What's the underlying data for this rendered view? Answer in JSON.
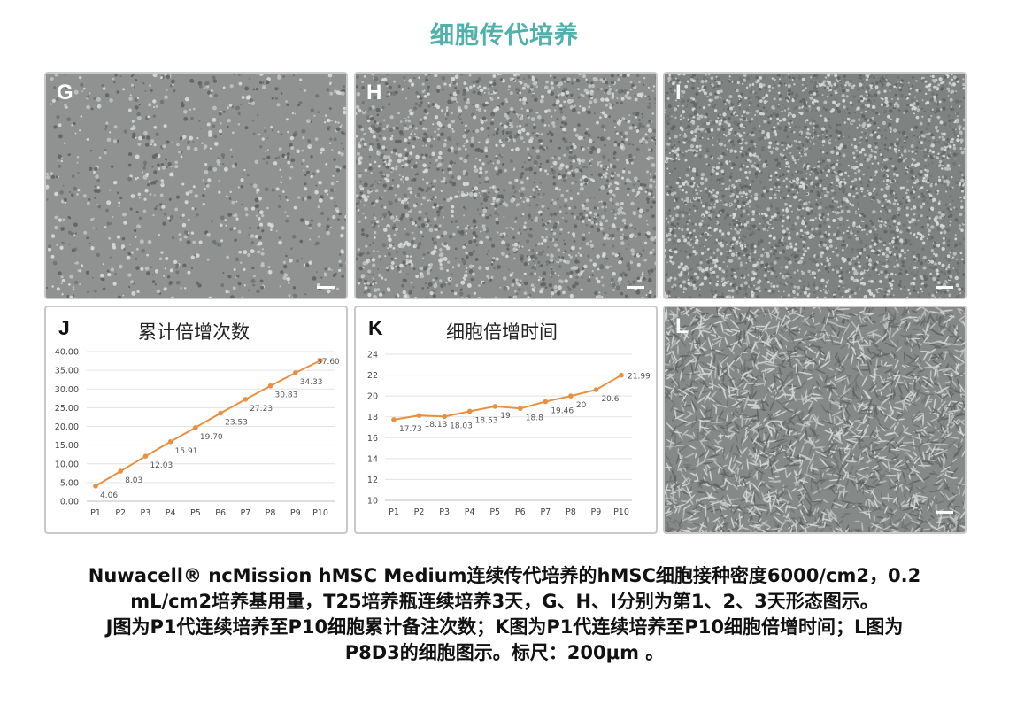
{
  "title": "细胞传代培养",
  "panels": {
    "g": "G",
    "h": "H",
    "i": "I",
    "l": "L"
  },
  "chart_data": [
    {
      "type": "line",
      "panel_label": "J",
      "title": "累计倍增次数",
      "categories": [
        "P1",
        "P2",
        "P3",
        "P4",
        "P5",
        "P6",
        "P7",
        "P8",
        "P9",
        "P10"
      ],
      "values": [
        4.06,
        8.03,
        12.03,
        15.91,
        19.7,
        23.53,
        27.23,
        30.83,
        34.33,
        37.6
      ],
      "data_labels": [
        "4.06",
        "8.03",
        "12.03",
        "15.91",
        "19.70",
        "23.53",
        "27.23",
        "30.83",
        "34.33",
        "37.60"
      ],
      "yticks": [
        "0.00",
        "5.00",
        "10.00",
        "15.00",
        "20.00",
        "25.00",
        "30.00",
        "35.00",
        "40.00"
      ],
      "ylim": [
        0,
        40
      ],
      "grid": true,
      "color": "#e98f3f"
    },
    {
      "type": "line",
      "panel_label": "K",
      "title": "细胞倍增时间",
      "categories": [
        "P1",
        "P2",
        "P3",
        "P4",
        "P5",
        "P6",
        "P7",
        "P8",
        "P9",
        "P10"
      ],
      "values": [
        17.73,
        18.13,
        18.03,
        18.53,
        19,
        18.8,
        19.46,
        20,
        20.6,
        21.99
      ],
      "data_labels": [
        "17.73",
        "18.13",
        "18.03",
        "18.53",
        "19",
        "18.8",
        "19.46",
        "20",
        "20.6",
        "21.99"
      ],
      "yticks": [
        "10",
        "12",
        "14",
        "16",
        "18",
        "20",
        "22",
        "24"
      ],
      "ylim": [
        10,
        24
      ],
      "grid": true,
      "color": "#e98f3f"
    }
  ],
  "caption": {
    "line1": "Nuwacell® ncMission hMSC Medium连续传代培养的hMSC细胞接种密度6000/cm2，0.2",
    "line2": "mL/cm2培养基用量，T25培养瓶连续培养3天，G、H、I分别为第1、2、3天形态图示。",
    "line3": "J图为P1代连续培养至P10细胞累计备注次数；K图为P1代连续培养至P10细胞倍增时间；L图为",
    "line4": "P8D3的细胞图示。标尺：200μm 。"
  }
}
